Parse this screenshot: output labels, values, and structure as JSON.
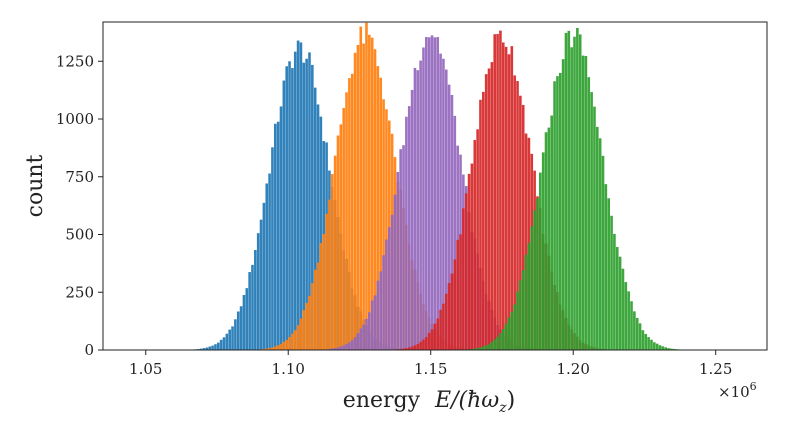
{
  "chart_data": {
    "type": "bar",
    "subtype": "overlapping-histograms",
    "title": "",
    "xlabel_text": "energy",
    "xlabel_math": "E/(ħω",
    "xlabel_sub": "z",
    "xlabel_close": ")",
    "ylabel": "count",
    "x_scale_label": "×10",
    "x_scale_exp": "6",
    "xlim": [
      1.035,
      1.268
    ],
    "ylim": [
      0,
      1420
    ],
    "xticks": [
      1.05,
      1.1,
      1.15,
      1.2,
      1.25
    ],
    "xtick_labels": [
      "1.05",
      "1.10",
      "1.15",
      "1.20",
      "1.25"
    ],
    "yticks": [
      0,
      250,
      500,
      750,
      1000,
      1250
    ],
    "ytick_labels": [
      "0",
      "250",
      "500",
      "750",
      "1000",
      "1250"
    ],
    "bin_width": 0.001,
    "grid": false,
    "series": [
      {
        "color": "#1f77b4",
        "center": 1.104,
        "sigma": 0.0105,
        "peak": 1305,
        "x_min": 1.058,
        "x_max": 1.15
      },
      {
        "color": "#ff7f0e",
        "center": 1.127,
        "sigma": 0.0105,
        "peak": 1360,
        "x_min": 1.08,
        "x_max": 1.175
      },
      {
        "color": "#9467bd",
        "center": 1.15,
        "sigma": 0.0105,
        "peak": 1380,
        "x_min": 1.103,
        "x_max": 1.198
      },
      {
        "color": "#d62728",
        "center": 1.175,
        "sigma": 0.0105,
        "peak": 1360,
        "x_min": 1.127,
        "x_max": 1.222
      },
      {
        "color": "#2ca02c",
        "center": 1.2,
        "sigma": 0.0105,
        "peak": 1365,
        "x_min": 1.152,
        "x_max": 1.248
      }
    ]
  }
}
